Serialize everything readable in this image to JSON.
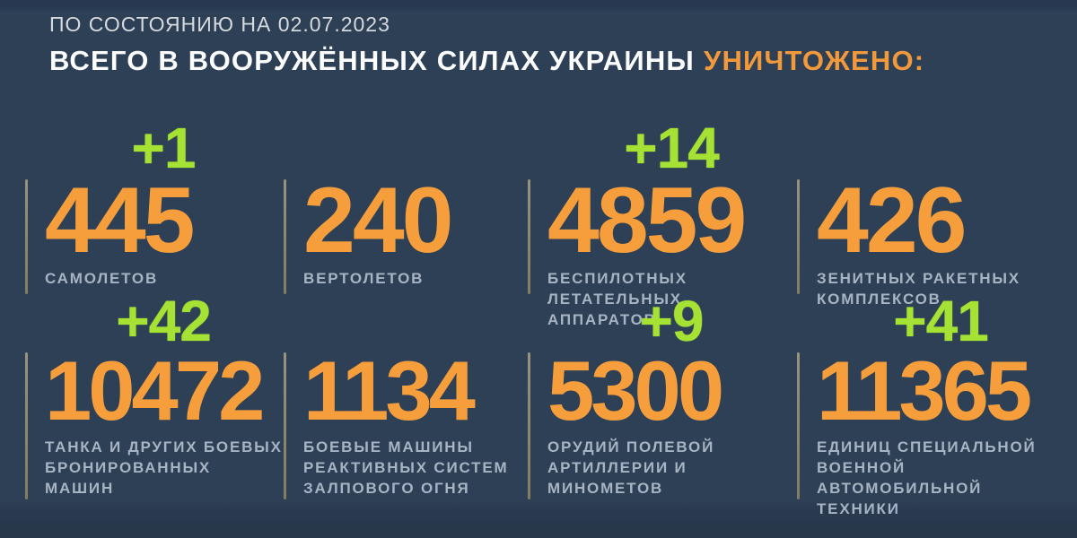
{
  "header": {
    "date_line": "ПО СОСТОЯНИЮ НА 02.07.2023",
    "title_white": "ВСЕГО В ВООРУЖЁННЫХ СИЛАХ УКРАИНЫ",
    "title_orange": "УНИЧТОЖЕНО:"
  },
  "colors": {
    "background": "#2e4056",
    "edge_band": "#293a50",
    "accent_orange": "#f59e3b",
    "increment_green": "#a6e234",
    "label_gray": "#a7b4c3",
    "divider_olive": "#8f897a",
    "title_white": "#fcfdfe"
  },
  "stats": [
    {
      "increment": "+1",
      "value": "445",
      "label": "САМОЛЕТОВ"
    },
    {
      "increment": "",
      "value": "240",
      "label": "ВЕРТОЛЕТОВ"
    },
    {
      "increment": "+14",
      "value": "4859",
      "label": "БЕСПИЛОТНЫХ\nЛЕТАТЕЛЬНЫХ АППАРАТОВ"
    },
    {
      "increment": "",
      "value": "426",
      "label": "ЗЕНИТНЫХ РАКЕТНЫХ\nКОМПЛЕКСОВ"
    },
    {
      "increment": "+42",
      "value": "10472",
      "label": "ТАНКА И ДРУГИХ БОЕВЫХ\nБРОНИРОВАННЫХ МАШИН"
    },
    {
      "increment": "",
      "value": "1134",
      "label": "БОЕВЫЕ МАШИНЫ\nРЕАКТИВНЫХ СИСТЕМ\nЗАЛПОВОГО ОГНЯ"
    },
    {
      "increment": "+9",
      "value": "5300",
      "label": "ОРУДИЙ ПОЛЕВОЙ\nАРТИЛЛЕРИИ И МИНОМЕТОВ"
    },
    {
      "increment": "+41",
      "value": "11365",
      "label": "ЕДИНИЦ СПЕЦИАЛЬНОЙ\nВОЕННОЙ АВТОМОБИЛЬНОЙ\nТЕХНИКИ"
    }
  ],
  "chart_data": {
    "type": "table",
    "title": "ВСЕГО В ВООРУЖЁННЫХ СИЛАХ УКРАИНЫ УНИЧТОЖЕНО:",
    "subtitle": "ПО СОСТОЯНИЮ НА 02.07.2023",
    "categories": [
      "САМОЛЕТОВ",
      "ВЕРТОЛЕТОВ",
      "БЕСПИЛОТНЫХ ЛЕТАТЕЛЬНЫХ АППАРАТОВ",
      "ЗЕНИТНЫХ РАКЕТНЫХ КОМПЛЕКСОВ",
      "ТАНКА И ДРУГИХ БОЕВЫХ БРОНИРОВАННЫХ МАШИН",
      "БОЕВЫЕ МАШИНЫ РЕАКТИВНЫХ СИСТЕМ ЗАЛПОВОГО ОГНЯ",
      "ОРУДИЙ ПОЛЕВОЙ АРТИЛЛЕРИИ И МИНОМЕТОВ",
      "ЕДИНИЦ СПЕЦИАЛЬНОЙ ВОЕННОЙ АВТОМОБИЛЬНОЙ ТЕХНИКИ"
    ],
    "values": [
      445,
      240,
      4859,
      426,
      10472,
      1134,
      5300,
      11365
    ],
    "daily_increments": [
      1,
      null,
      14,
      null,
      42,
      null,
      9,
      41
    ],
    "layout": "2 rows x 4 columns, increments shown above values"
  }
}
